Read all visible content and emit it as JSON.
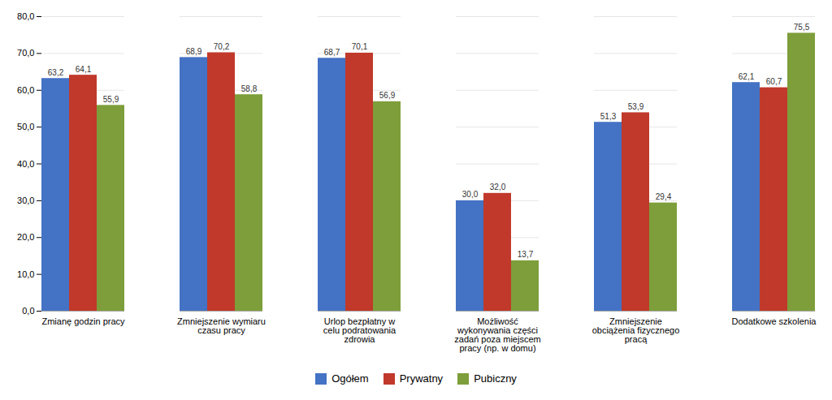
{
  "chart_data": {
    "type": "bar",
    "categories": [
      "Zmianę godzin pracy",
      "Zmniejszenie wymiaru\nczasu pracy",
      "Urlop bezpłatny w\ncelu podratowania\nzdrowia",
      "Możliwość\nwykonywania części\nzadań poza miejscem\npracy (np. w domu)",
      "Zmniejszenie\nobciążenia fizycznego\npracą",
      "Dodatkowe szkolenia"
    ],
    "series": [
      {
        "name": "Ogółem",
        "color": "#4472C4",
        "values": [
          63.2,
          68.9,
          68.7,
          30.0,
          51.3,
          62.1
        ],
        "value_labels": [
          "63,2",
          "68,9",
          "68,7",
          "30,0",
          "51,3",
          "62,1"
        ]
      },
      {
        "name": "Prywatny",
        "color": "#C0392B",
        "values": [
          64.1,
          70.2,
          70.1,
          32.0,
          53.9,
          60.7
        ],
        "value_labels": [
          "64,1",
          "70,2",
          "70,1",
          "32,0",
          "53,9",
          "60,7"
        ]
      },
      {
        "name": "Pubiczny",
        "color": "#7D9E3A",
        "values": [
          55.9,
          58.8,
          56.9,
          13.7,
          29.4,
          75.5
        ],
        "value_labels": [
          "55,9",
          "58,8",
          "56,9",
          "13,7",
          "29,4",
          "75,5"
        ]
      }
    ],
    "ylim": [
      0,
      80
    ],
    "yticks": [
      {
        "value": 0,
        "label": "0,0"
      },
      {
        "value": 10,
        "label": "10,0"
      },
      {
        "value": 20,
        "label": "20,0"
      },
      {
        "value": 30,
        "label": "30,0"
      },
      {
        "value": 40,
        "label": "40,0"
      },
      {
        "value": 50,
        "label": "50,0"
      },
      {
        "value": 60,
        "label": "60,0"
      },
      {
        "value": 70,
        "label": "70,0"
      },
      {
        "value": 80,
        "label": "80,0"
      }
    ],
    "grid": true,
    "data_labels": true,
    "legend": "bottom"
  }
}
